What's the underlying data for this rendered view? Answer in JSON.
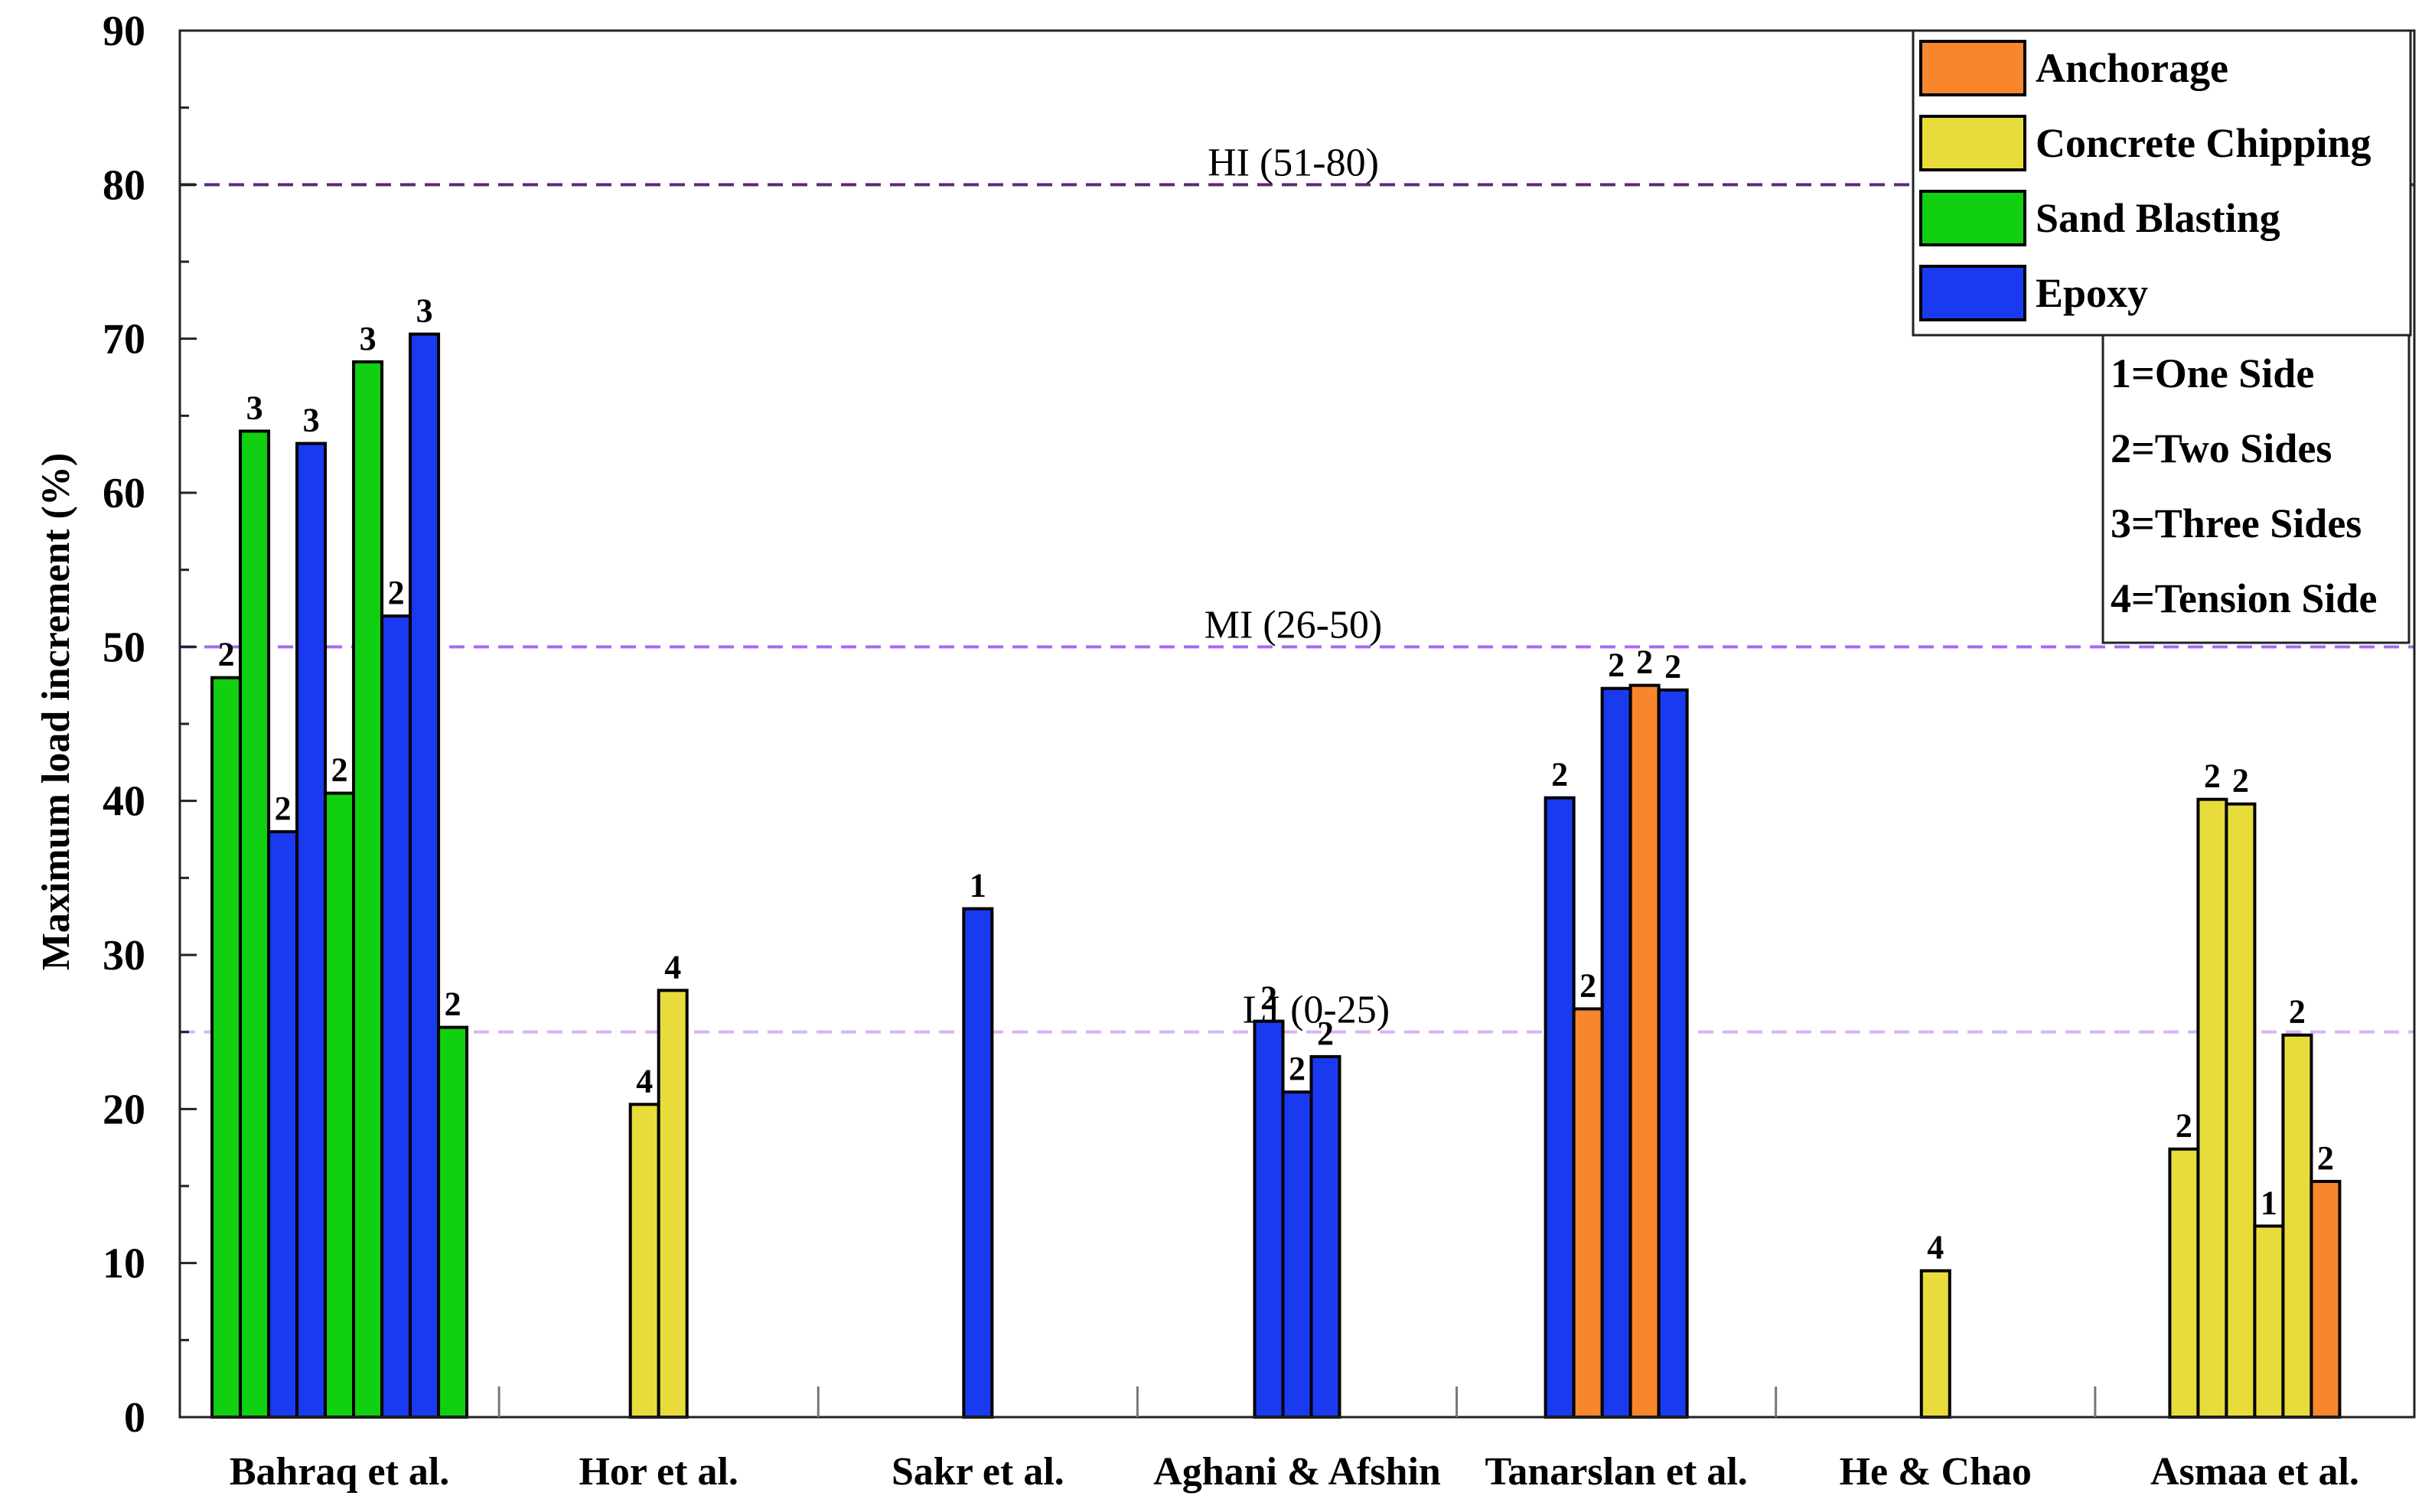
{
  "chart_data": {
    "type": "bar",
    "title": "",
    "xlabel": "",
    "ylabel": "Maximum load increment (%)",
    "ylim": [
      0,
      90
    ],
    "yticks": [
      0,
      10,
      20,
      30,
      40,
      50,
      60,
      70,
      80,
      90
    ],
    "grid": false,
    "categories": [
      "Bahraq et al.",
      "Hor et al.",
      "Sakr et al.",
      "Aghani & Afshin",
      "Tanarslan et al.",
      "He & Chao",
      "Asmaa et al."
    ],
    "methods": [
      {
        "name": "Anchorage",
        "color": "#f7862d"
      },
      {
        "name": "Concrete Chipping",
        "color": "#e8dc3c"
      },
      {
        "name": "Sand Blasting",
        "color": "#11cf11"
      },
      {
        "name": "Epoxy",
        "color": "#1a3af0"
      }
    ],
    "side_key": [
      "1=One Side",
      "2=Two Sides",
      "3=Three Sides",
      "4=Tension Side"
    ],
    "legend_position": "top-right",
    "reference_lines": [
      {
        "label": "HI (51-80)",
        "value": 80,
        "color": "#5a2a7a"
      },
      {
        "label": "MI (26-50)",
        "value": 50,
        "color": "#a66cf0"
      },
      {
        "label": "LI (0-25)",
        "value": 25,
        "color": "#d6b4f5"
      }
    ],
    "groups": [
      {
        "category": "Bahraq et al.",
        "bars": [
          {
            "method": "Sand Blasting",
            "value": 48,
            "label": "2"
          },
          {
            "method": "Sand Blasting",
            "value": 64,
            "label": "3"
          },
          {
            "method": "Epoxy",
            "value": 38,
            "label": "2"
          },
          {
            "method": "Epoxy",
            "value": 63.2,
            "label": "3"
          },
          {
            "method": "Sand Blasting",
            "value": 40.5,
            "label": "2"
          },
          {
            "method": "Sand Blasting",
            "value": 68.5,
            "label": "3"
          },
          {
            "method": "Epoxy",
            "value": 52,
            "label": "2"
          },
          {
            "method": "Epoxy",
            "value": 70.3,
            "label": "3"
          },
          {
            "method": "Sand Blasting",
            "value": 25.3,
            "label": "2"
          }
        ]
      },
      {
        "category": "Hor et al.",
        "bars": [
          {
            "method": "Concrete Chipping",
            "value": 20.3,
            "label": "4"
          },
          {
            "method": "Concrete Chipping",
            "value": 27.7,
            "label": "4"
          }
        ]
      },
      {
        "category": "Sakr et al.",
        "bars": [
          {
            "method": "Epoxy",
            "value": 33,
            "label": "1"
          }
        ]
      },
      {
        "category": "Aghani & Afshin",
        "bars": [
          {
            "method": "Epoxy",
            "value": 25.7,
            "label": "2"
          },
          {
            "method": "Epoxy",
            "value": 21.1,
            "label": "2"
          },
          {
            "method": "Epoxy",
            "value": 23.4,
            "label": "2"
          }
        ]
      },
      {
        "category": "Tanarslan et al.",
        "bars": [
          {
            "method": "Epoxy",
            "value": 40.2,
            "label": "2"
          },
          {
            "method": "Anchorage",
            "value": 26.5,
            "label": "2"
          },
          {
            "method": "Epoxy",
            "value": 47.3,
            "label": "2"
          },
          {
            "method": "Anchorage",
            "value": 47.5,
            "label": "2"
          },
          {
            "method": "Epoxy",
            "value": 47.2,
            "label": "2"
          }
        ]
      },
      {
        "category": "He & Chao",
        "bars": [
          {
            "method": "Concrete Chipping",
            "value": 9.5,
            "label": "4"
          }
        ]
      },
      {
        "category": "Asmaa et al.",
        "bars": [
          {
            "method": "Concrete Chipping",
            "value": 17.4,
            "label": "2"
          },
          {
            "method": "Concrete Chipping",
            "value": 40.1,
            "label": "2"
          },
          {
            "method": "Concrete Chipping",
            "value": 39.8,
            "label": "2"
          },
          {
            "method": "Concrete Chipping",
            "value": 12.4,
            "label": "1"
          },
          {
            "method": "Concrete Chipping",
            "value": 24.8,
            "label": "2"
          },
          {
            "method": "Anchorage",
            "value": 15.3,
            "label": "2"
          }
        ]
      }
    ]
  }
}
